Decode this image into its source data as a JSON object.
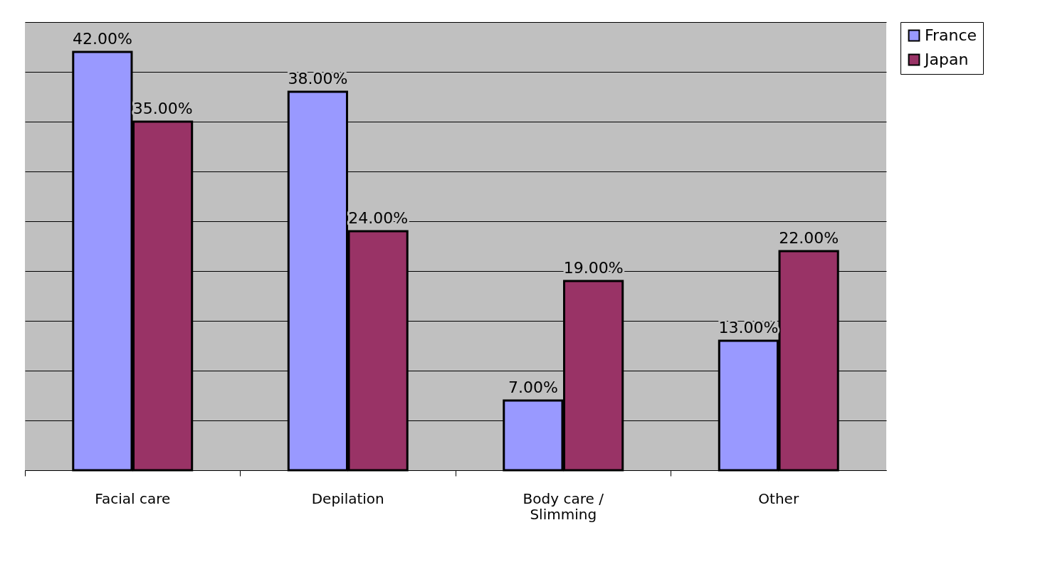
{
  "chart_data": {
    "type": "bar",
    "categories": [
      "Facial care",
      "Depilation",
      "Body care / Slimming",
      "Other"
    ],
    "series": [
      {
        "name": "France",
        "color": "#9999ff",
        "values": [
          42,
          38,
          7,
          13
        ],
        "value_labels": [
          "42.00%",
          "38.00%",
          "7.00%",
          "13.00%"
        ]
      },
      {
        "name": "Japan",
        "color": "#993366",
        "values": [
          35,
          24,
          19,
          22
        ],
        "value_labels": [
          "35.00%",
          "24.00%",
          "19.00%",
          "22.00%"
        ]
      }
    ],
    "ylim": [
      0,
      45
    ],
    "yticks": [
      {
        "value": 0,
        "label": null
      },
      {
        "value": 5,
        "label": null
      },
      {
        "value": 10,
        "label": null
      },
      {
        "value": 15,
        "label": null
      },
      {
        "value": 20,
        "label": null
      },
      {
        "value": 25,
        "label": null
      },
      {
        "value": 30,
        "label": null
      },
      {
        "value": 35,
        "label": null
      },
      {
        "value": 40,
        "label": null
      },
      {
        "value": 45,
        "label": null
      }
    ],
    "grid": "y",
    "legend": "right",
    "tick_labels": "x"
  }
}
